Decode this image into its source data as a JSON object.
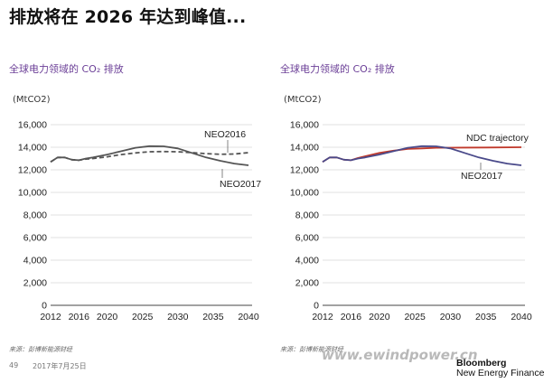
{
  "page": {
    "title": "排放将在 2026 年达到峰值...",
    "footer": {
      "page_number": "49",
      "date": "2017年7月25日",
      "source_left": "来源：彭博新能源财经",
      "source_right": "来源：彭博新能源财经",
      "watermark": "www.ewindpower.cn",
      "logo_line1": "Bloomberg",
      "logo_line2": "New Energy Finance"
    }
  },
  "chart_data": [
    {
      "type": "line",
      "title": "全球电力领域的 CO₂ 排放",
      "ylabel": "(MtCO2)",
      "xlabel": "",
      "ylim": [
        0,
        16000
      ],
      "xlim": [
        2012,
        2040
      ],
      "x_ticks": [
        "2012",
        "2016",
        "2020",
        "2025",
        "2030",
        "2035",
        "2040"
      ],
      "y_ticks": [
        "0",
        "2,000",
        "4,000",
        "6,000",
        "8,000",
        "10,000",
        "12,000",
        "14,000",
        "16,000"
      ],
      "grid": true,
      "series": [
        {
          "name": "NEO2016",
          "style": "dashed",
          "color": "#555555",
          "x": [
            2012,
            2013,
            2014,
            2015,
            2016,
            2017,
            2018,
            2020,
            2022,
            2024,
            2026,
            2028,
            2030,
            2032,
            2034,
            2036,
            2038,
            2040
          ],
          "y": [
            12700,
            13100,
            13100,
            12900,
            12850,
            12950,
            13000,
            13150,
            13350,
            13500,
            13600,
            13620,
            13600,
            13520,
            13430,
            13380,
            13400,
            13520
          ]
        },
        {
          "name": "NEO2017",
          "style": "solid",
          "color": "#555555",
          "x": [
            2012,
            2013,
            2014,
            2015,
            2016,
            2017,
            2018,
            2020,
            2022,
            2024,
            2026,
            2028,
            2030,
            2032,
            2034,
            2036,
            2038,
            2040
          ],
          "y": [
            12700,
            13100,
            13100,
            12900,
            12850,
            13000,
            13100,
            13350,
            13650,
            13950,
            14100,
            14080,
            13900,
            13500,
            13100,
            12800,
            12550,
            12400
          ]
        }
      ]
    },
    {
      "type": "line",
      "title": "全球电力领域的 CO₂ 排放",
      "ylabel": "(MtCO2)",
      "xlabel": "",
      "ylim": [
        0,
        16000
      ],
      "xlim": [
        2012,
        2040
      ],
      "x_ticks": [
        "2012",
        "2016",
        "2020",
        "2025",
        "2030",
        "2035",
        "2040"
      ],
      "y_ticks": [
        "0",
        "2,000",
        "4,000",
        "6,000",
        "8,000",
        "10,000",
        "12,000",
        "14,000",
        "16,000"
      ],
      "grid": true,
      "series": [
        {
          "name": "NDC trajectory",
          "style": "solid",
          "color": "#c0392b",
          "x": [
            2012,
            2013,
            2014,
            2015,
            2016,
            2017,
            2018,
            2020,
            2022,
            2024,
            2026,
            2028,
            2030,
            2035,
            2040
          ],
          "y": [
            12700,
            13100,
            13100,
            12900,
            12850,
            13050,
            13200,
            13500,
            13700,
            13850,
            13900,
            13950,
            13960,
            13980,
            14000
          ]
        },
        {
          "name": "NEO2017",
          "style": "solid",
          "color": "#4a4a8a",
          "x": [
            2012,
            2013,
            2014,
            2015,
            2016,
            2017,
            2018,
            2020,
            2022,
            2024,
            2026,
            2028,
            2030,
            2032,
            2034,
            2036,
            2038,
            2040
          ],
          "y": [
            12700,
            13100,
            13100,
            12900,
            12850,
            13000,
            13100,
            13350,
            13650,
            13950,
            14100,
            14080,
            13900,
            13500,
            13100,
            12800,
            12550,
            12400
          ]
        }
      ]
    }
  ]
}
